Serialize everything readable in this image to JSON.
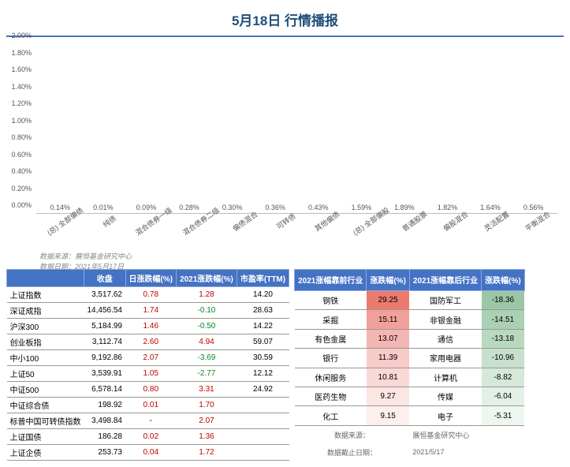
{
  "title": "5月18日  行情播报",
  "chart": {
    "type": "bar",
    "ylim": [
      0,
      2.0
    ],
    "ytick_step": 0.2,
    "yticks": [
      "0.00%",
      "0.20%",
      "0.40%",
      "0.60%",
      "0.80%",
      "1.00%",
      "1.20%",
      "1.40%",
      "1.60%",
      "1.80%",
      "2.00%"
    ],
    "bar_color_default": "#4472c4",
    "bar_color_highlight": "#9c6fae",
    "background_color": "#ffffff",
    "grid_color": "#d9d9d9",
    "bars": [
      {
        "label": "(总) 全部偏债",
        "value": 0.14,
        "display": "0.14%",
        "highlight": true
      },
      {
        "label": "纯债",
        "value": 0.01,
        "display": "0.01%",
        "highlight": false
      },
      {
        "label": "混合债券一级",
        "value": 0.09,
        "display": "0.09%",
        "highlight": false
      },
      {
        "label": "混合债券二级",
        "value": 0.28,
        "display": "0.28%",
        "highlight": false
      },
      {
        "label": "偏债混合",
        "value": 0.3,
        "display": "0.30%",
        "highlight": false
      },
      {
        "label": "可转债",
        "value": 0.36,
        "display": "0.36%",
        "highlight": false
      },
      {
        "label": "其他偏债",
        "value": 0.43,
        "display": "0.43%",
        "highlight": false
      },
      {
        "label": "(总) 全部偏股",
        "value": 1.59,
        "display": "1.59%",
        "highlight": true
      },
      {
        "label": "普通股票",
        "value": 1.89,
        "display": "1.89%",
        "highlight": false
      },
      {
        "label": "偏股混合",
        "value": 1.82,
        "display": "1.82%",
        "highlight": false
      },
      {
        "label": "灵活配置",
        "value": 1.64,
        "display": "1.64%",
        "highlight": false
      },
      {
        "label": "平衡混合",
        "value": 0.56,
        "display": "0.56%",
        "highlight": false
      }
    ],
    "footer_line1": "数据来源：展恒基金研究中心",
    "footer_line2": "数据日期：2021年5月17日"
  },
  "left_table": {
    "headers": [
      "",
      "收盘",
      "日涨跌幅(%)",
      "2021涨跌幅(%)",
      "市盈率(TTM)"
    ],
    "rows": [
      [
        "上证指数",
        "3,517.62",
        "0.78",
        "1.28",
        "14.20"
      ],
      [
        "深证成指",
        "14,456.54",
        "1.74",
        "-0.10",
        "28.63"
      ],
      [
        "沪深300",
        "5,184.99",
        "1.46",
        "-0.50",
        "14.22"
      ],
      [
        "创业板指",
        "3,112.74",
        "2.60",
        "4.94",
        "59.07"
      ],
      [
        "中小100",
        "9,192.86",
        "2.07",
        "-3.69",
        "30.59"
      ],
      [
        "上证50",
        "3,539.91",
        "1.05",
        "-2.77",
        "12.12"
      ],
      [
        "中证500",
        "6,578.14",
        "0.80",
        "3.31",
        "24.92"
      ],
      [
        "中证综合债",
        "198.92",
        "0.01",
        "1.70",
        ""
      ],
      [
        "标普中国可转债指数",
        "3,498.84",
        "-",
        "2.07",
        ""
      ],
      [
        "上证国债",
        "186.28",
        "0.02",
        "1.36",
        ""
      ],
      [
        "上证企债",
        "253.73",
        "0.04",
        "1.72",
        ""
      ]
    ]
  },
  "right_table": {
    "headers": [
      "2021涨幅靠前行业",
      "涨跌幅(%)",
      "2021涨幅靠后行业",
      "涨跌幅(%)"
    ],
    "rows": [
      {
        "sec1": "钢铁",
        "v1": "29.25",
        "c1": "#ec7a6e",
        "sec2": "国防军工",
        "v2": "-18.36",
        "c2": "#9cc7a6"
      },
      {
        "sec1": "采掘",
        "v1": "15.11",
        "c1": "#f1a09a",
        "sec2": "非银金融",
        "v2": "-14.51",
        "c2": "#acd0b4"
      },
      {
        "sec1": "有色金属",
        "v1": "13.07",
        "c1": "#f4b6b2",
        "sec2": "通信",
        "v2": "-13.18",
        "c2": "#b9d8bf"
      },
      {
        "sec1": "银行",
        "v1": "11.39",
        "c1": "#f7cbc8",
        "sec2": "家用电器",
        "v2": "-10.96",
        "c2": "#c8e0cd"
      },
      {
        "sec1": "休闲服务",
        "v1": "10.81",
        "c1": "#f9d8d6",
        "sec2": "计算机",
        "v2": "-8.82",
        "c2": "#d5e8d9"
      },
      {
        "sec1": "医药生物",
        "v1": "9.27",
        "c1": "#fbe6e4",
        "sec2": "传媒",
        "v2": "-6.04",
        "c2": "#e3f0e6"
      },
      {
        "sec1": "化工",
        "v1": "9.15",
        "c1": "#fcefee",
        "sec2": "电子",
        "v2": "-5.31",
        "c2": "#eef6f0"
      }
    ],
    "footer_src_label": "数据来源：",
    "footer_src_value": "展恒基金研究中心",
    "footer_date_label": "数据截止日期：",
    "footer_date_value": "2021/5/17"
  }
}
